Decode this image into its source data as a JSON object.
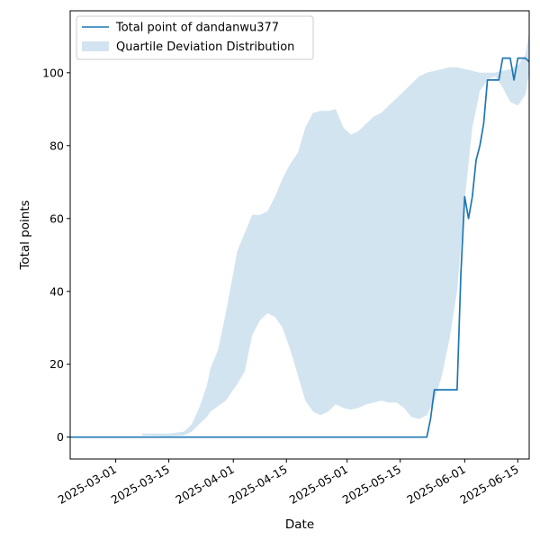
{
  "chart_data": {
    "type": "line",
    "xlabel": "Date",
    "ylabel": "Total points",
    "xlim": [
      "2025-02-17",
      "2025-06-18"
    ],
    "ylim": [
      -6,
      117
    ],
    "x_ticks": [
      "2025-03-01",
      "2025-03-15",
      "2025-04-01",
      "2025-04-15",
      "2025-05-01",
      "2025-05-15",
      "2025-06-01",
      "2025-06-15"
    ],
    "y_ticks": [
      0,
      20,
      40,
      60,
      80,
      100
    ],
    "legend": {
      "placement": "upper-left",
      "entries": [
        "Total point of dandanwu377",
        "Quartile Deviation Distribution"
      ]
    },
    "colors": {
      "line": "#1f77b4",
      "band": "#1f77b4"
    },
    "series": [
      {
        "name": "Total point of dandanwu377",
        "type": "line",
        "x": [
          "2025-02-17",
          "2025-05-22",
          "2025-05-23",
          "2025-05-24",
          "2025-05-30",
          "2025-05-31",
          "2025-06-01",
          "2025-06-02",
          "2025-06-03",
          "2025-06-04",
          "2025-06-05",
          "2025-06-06",
          "2025-06-07",
          "2025-06-10",
          "2025-06-11",
          "2025-06-13",
          "2025-06-14",
          "2025-06-15",
          "2025-06-17",
          "2025-06-18"
        ],
        "y": [
          0,
          0,
          5,
          13,
          13,
          45,
          66,
          60,
          66,
          76,
          80,
          86,
          98,
          98,
          104,
          104,
          98,
          104,
          104,
          103
        ]
      },
      {
        "name": "Quartile Deviation Distribution",
        "type": "band",
        "x": [
          "2025-03-08",
          "2025-03-15",
          "2025-03-19",
          "2025-03-21",
          "2025-03-23",
          "2025-03-25",
          "2025-03-26",
          "2025-03-28",
          "2025-03-30",
          "2025-04-01",
          "2025-04-02",
          "2025-04-04",
          "2025-04-06",
          "2025-04-08",
          "2025-04-10",
          "2025-04-12",
          "2025-04-14",
          "2025-04-16",
          "2025-04-18",
          "2025-04-20",
          "2025-04-22",
          "2025-04-24",
          "2025-04-26",
          "2025-04-28",
          "2025-04-30",
          "2025-05-02",
          "2025-05-04",
          "2025-05-06",
          "2025-05-08",
          "2025-05-10",
          "2025-05-12",
          "2025-05-14",
          "2025-05-16",
          "2025-05-18",
          "2025-05-20",
          "2025-05-22",
          "2025-05-24",
          "2025-05-26",
          "2025-05-28",
          "2025-05-30",
          "2025-06-01",
          "2025-06-03",
          "2025-06-05",
          "2025-06-07",
          "2025-06-09",
          "2025-06-11",
          "2025-06-13",
          "2025-06-15",
          "2025-06-17",
          "2025-06-18"
        ],
        "lower": [
          0.5,
          0.3,
          0.5,
          1.5,
          3.5,
          5.5,
          7,
          8.5,
          10,
          13,
          14.5,
          18,
          28,
          32,
          34,
          33,
          30,
          24,
          17,
          10,
          7,
          6,
          7,
          9,
          8,
          7.5,
          8,
          9,
          9.5,
          10,
          9.5,
          9.5,
          8,
          5.5,
          5,
          6,
          10,
          17,
          27,
          40,
          65,
          85,
          95,
          98,
          99,
          96,
          92,
          91,
          94,
          100
        ],
        "upper": [
          1,
          1,
          1.5,
          3.5,
          8,
          14,
          19,
          24,
          34,
          45,
          51,
          56,
          61,
          61,
          62,
          66,
          71,
          75,
          78,
          85,
          89,
          89.5,
          89.5,
          90,
          85,
          83,
          84,
          86,
          88,
          89,
          91,
          93,
          95,
          97,
          99,
          100,
          100.5,
          101,
          101.5,
          101.5,
          101,
          100.5,
          100,
          100,
          100,
          100.5,
          101,
          102,
          105,
          111
        ]
      }
    ]
  }
}
